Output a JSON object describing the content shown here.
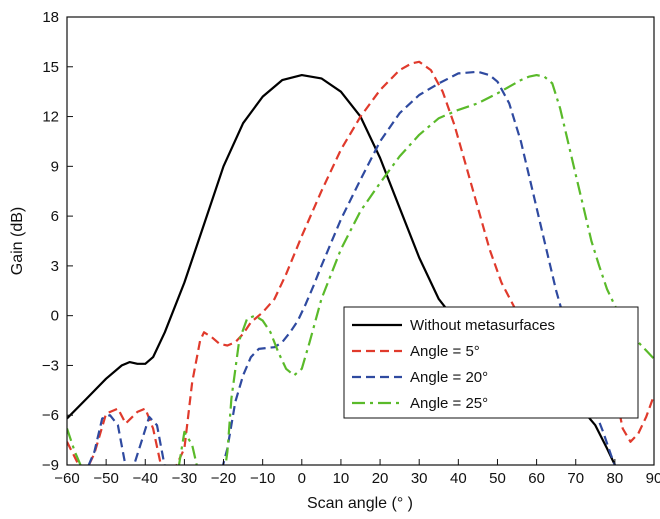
{
  "chart_data": {
    "type": "line",
    "xlabel": "Scan angle (° )",
    "ylabel": "Gain (dB)",
    "xlim": [
      -60,
      90
    ],
    "ylim": [
      -9,
      18
    ],
    "xticks": [
      "−60",
      "−50",
      "−40",
      "−30",
      "−20",
      "−10",
      "0",
      "10",
      "20",
      "30",
      "40",
      "50",
      "60",
      "70",
      "80",
      "90"
    ],
    "yticks": [
      "−9",
      "−6",
      "−3",
      "0",
      "3",
      "6",
      "9",
      "12",
      "15",
      "18"
    ],
    "grid": false,
    "legend_position": "lower-right",
    "series": [
      {
        "name": "Without metasurfaces",
        "color": "#000000",
        "dash": "solid",
        "x": [
          -60,
          -55,
          -50,
          -46,
          -44,
          -42,
          -40,
          -38,
          -35,
          -30,
          -25,
          -20,
          -15,
          -10,
          -5,
          0,
          5,
          10,
          15,
          20,
          25,
          30,
          35,
          40,
          45,
          50,
          55,
          60,
          65,
          70,
          75,
          78,
          80,
          81
        ],
        "y": [
          -6.2,
          -5,
          -3.8,
          -3,
          -2.8,
          -2.9,
          -2.9,
          -2.5,
          -1,
          2,
          5.5,
          9,
          11.6,
          13.2,
          14.2,
          14.5,
          14.3,
          13.5,
          12,
          9.5,
          6.5,
          3.5,
          1,
          -0.5,
          -1.2,
          -2.2,
          -3,
          -3.5,
          -4.2,
          -5.2,
          -6.6,
          -8,
          -9,
          -9.3
        ]
      },
      {
        "name": "Angle = 5°",
        "color": "#e03a2c",
        "dash": "dash",
        "x": [
          -60,
          -57,
          -55,
          -53,
          -50,
          -47,
          -45,
          -42,
          -40,
          -38,
          -36,
          -33,
          -30,
          -28,
          -26,
          -25,
          -23,
          -21,
          -19,
          -17,
          -15,
          -13,
          -10,
          -7,
          -4,
          0,
          5,
          10,
          15,
          20,
          25,
          28,
          30,
          33,
          36,
          39,
          42,
          45,
          48,
          51,
          53,
          55,
          57,
          59,
          61,
          63,
          65,
          68,
          71,
          74,
          77,
          80,
          82,
          84,
          86,
          88,
          90
        ],
        "y": [
          -7.6,
          -9,
          -9.3,
          -8.3,
          -5.9,
          -5.6,
          -6.5,
          -5.8,
          -5.6,
          -6.8,
          -9,
          -9.5,
          -8,
          -4,
          -1.5,
          -1,
          -1.3,
          -1.7,
          -1.8,
          -1.6,
          -1.1,
          -0.4,
          0.2,
          1,
          2.5,
          4.8,
          7.5,
          10,
          12,
          13.6,
          14.8,
          15.2,
          15.3,
          14.8,
          13.5,
          11.5,
          9,
          6.5,
          4,
          2,
          1.1,
          0.2,
          -0.2,
          -0.3,
          -0.5,
          -0.7,
          -0.9,
          -1.3,
          -1.7,
          -2.1,
          -2.6,
          -4.5,
          -6.8,
          -7.6,
          -7.1,
          -6.1,
          -4.8
        ]
      },
      {
        "name": "Angle = 20°",
        "color": "#2f4aa0",
        "dash": "dash",
        "x": [
          -57,
          -55,
          -53,
          -51,
          -49,
          -47,
          -45,
          -43,
          -41,
          -39,
          -37,
          -35,
          -33,
          -31,
          -29,
          -27,
          -25,
          -23,
          -21,
          -19,
          -17,
          -15,
          -13,
          -11,
          -9,
          -7,
          -5,
          -3,
          -1,
          1,
          3,
          5,
          10,
          15,
          20,
          25,
          30,
          35,
          40,
          45,
          48,
          50,
          53,
          56,
          59,
          62,
          65,
          68,
          71,
          74,
          77,
          79,
          80,
          82,
          84
        ],
        "y": [
          -9,
          -9.3,
          -8.2,
          -6.2,
          -6,
          -6.6,
          -9.1,
          -9.1,
          -7.6,
          -6.1,
          -6.6,
          -9.1,
          -9.5,
          -9.4,
          -9.6,
          -9.8,
          -9.8,
          -9.8,
          -9.8,
          -8,
          -5.2,
          -3.6,
          -2.5,
          -2,
          -1.95,
          -1.9,
          -1.6,
          -1,
          -0.3,
          0.7,
          1.8,
          3,
          5.8,
          8.2,
          10.5,
          12.2,
          13.3,
          14,
          14.6,
          14.7,
          14.5,
          14.1,
          12.8,
          10.5,
          7.5,
          4.5,
          1.5,
          -1,
          -3.2,
          -5.2,
          -7,
          -8.4,
          -9,
          -9.5,
          -9.7
        ]
      },
      {
        "name": "Angle = 25°",
        "color": "#5aba2a",
        "dash": "dashdot",
        "x": [
          -60,
          -58,
          -56,
          -54,
          -52,
          -50,
          -48,
          -46,
          -44,
          -42,
          -40,
          -38,
          -36,
          -34,
          -32,
          -30,
          -28,
          -26,
          -24,
          -22,
          -20,
          -19,
          -18,
          -16,
          -14,
          -12,
          -10,
          -8,
          -6,
          -4,
          -2,
          0,
          2,
          5,
          10,
          15,
          20,
          25,
          30,
          35,
          40,
          45,
          50,
          53,
          56,
          58,
          60,
          62,
          64,
          66,
          68,
          70,
          72,
          74,
          76,
          78,
          80,
          82,
          84,
          86,
          88,
          90
        ],
        "y": [
          -6.8,
          -8.2,
          -9.3,
          -9.9,
          -9.9,
          -9.9,
          -9.9,
          -9.9,
          -9.9,
          -9.9,
          -9.9,
          -9.9,
          -9.9,
          -9.9,
          -9.9,
          -7,
          -7.8,
          -9.9,
          -9.9,
          -9.9,
          -9.9,
          -8.2,
          -5,
          -1.5,
          -0.2,
          0,
          -0.3,
          -1,
          -2.2,
          -3.2,
          -3.6,
          -3.2,
          -1.6,
          1,
          4,
          6.3,
          8,
          9.6,
          10.9,
          11.9,
          12.4,
          12.8,
          13.4,
          13.8,
          14.2,
          14.4,
          14.5,
          14.4,
          14,
          12.5,
          10.5,
          8.5,
          6.5,
          4.5,
          3,
          1.6,
          0.6,
          -0.3,
          -1,
          -1.6,
          -2.1,
          -2.6
        ]
      }
    ]
  }
}
